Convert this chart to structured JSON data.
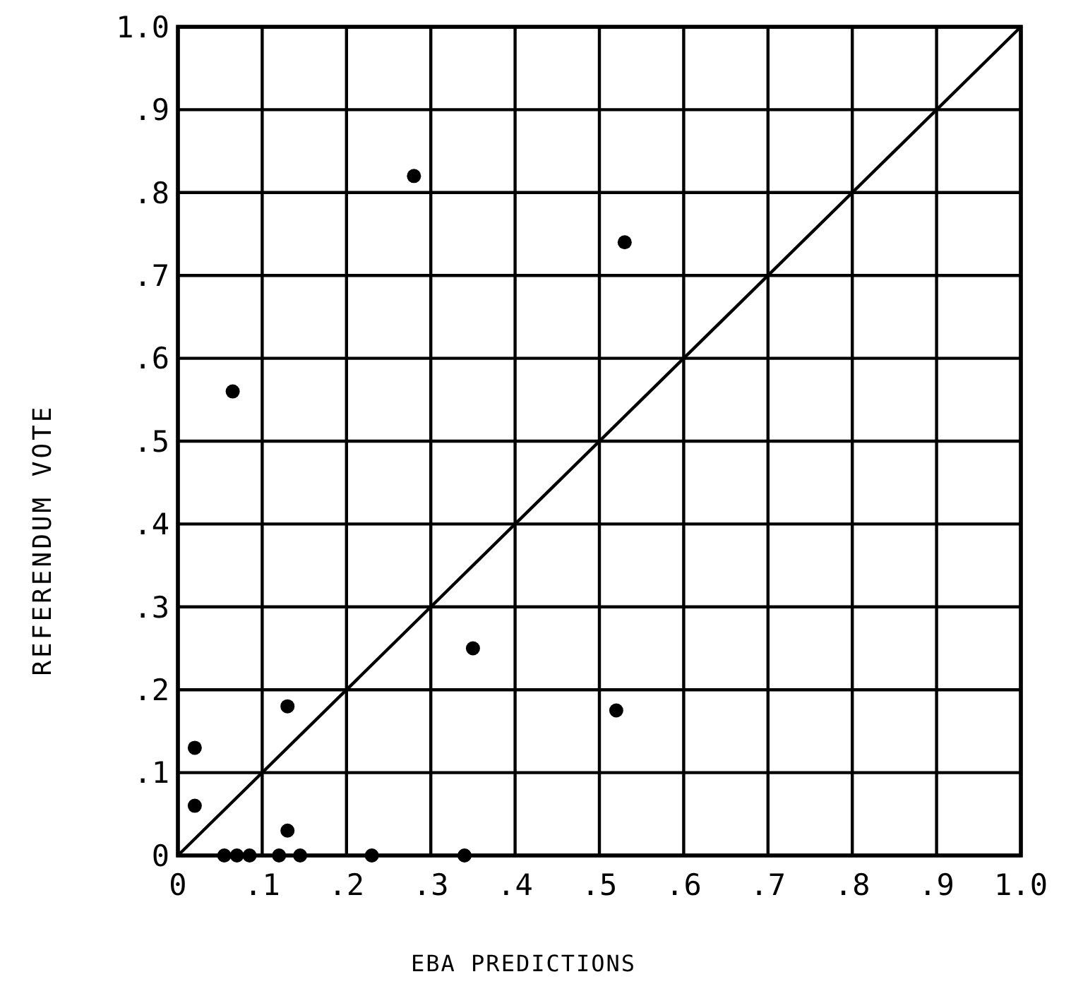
{
  "chart_data": {
    "type": "scatter",
    "xlabel": "EBA PREDICTIONS",
    "ylabel": "REFERENDUM VOTE",
    "xlim": [
      0,
      1
    ],
    "ylim": [
      0,
      1
    ],
    "xticks": [
      0,
      {
        "value": 0.1,
        "label": ".1"
      },
      {
        "value": 0.2,
        "label": ".2"
      },
      {
        "value": 0.3,
        "label": ".3"
      },
      {
        "value": 0.4,
        "label": ".4"
      },
      {
        "value": 0.5,
        "label": ".5"
      },
      {
        "value": 0.6,
        "label": ".6"
      },
      {
        "value": 0.7,
        "label": ".7"
      },
      {
        "value": 0.8,
        "label": ".8"
      },
      {
        "value": 0.9,
        "label": ".9"
      },
      {
        "value": 1,
        "label": "1.0"
      }
    ],
    "yticks": [
      0,
      {
        "value": 0.1,
        "label": ".1"
      },
      {
        "value": 0.2,
        "label": ".2"
      },
      {
        "value": 0.3,
        "label": ".3"
      },
      {
        "value": 0.4,
        "label": ".4"
      },
      {
        "value": 0.5,
        "label": ".5"
      },
      {
        "value": 0.6,
        "label": ".6"
      },
      {
        "value": 0.7,
        "label": ".7"
      },
      {
        "value": 0.8,
        "label": ".8"
      },
      {
        "value": 0.9,
        "label": ".9"
      },
      {
        "value": 1,
        "label": "1.0"
      }
    ],
    "grid": true,
    "marker": "circle",
    "series": [
      {
        "color": "#000000",
        "x": [
          0.28,
          0.53,
          0.065,
          0.35,
          0.13,
          0.52,
          0.02,
          0.02,
          0.13,
          0.055,
          0.07,
          0.085,
          0.12,
          0.145,
          0.23,
          0.34
        ],
        "values": [
          0.82,
          0.74,
          0.56,
          0.25,
          0.18,
          0.175,
          0.13,
          0.06,
          0.03,
          0,
          0,
          0,
          0,
          0,
          0,
          0
        ]
      },
      {
        "type": "line",
        "color": "#000000",
        "marker": "none",
        "x": [
          0,
          1
        ],
        "values": [
          0,
          1
        ]
      }
    ]
  }
}
